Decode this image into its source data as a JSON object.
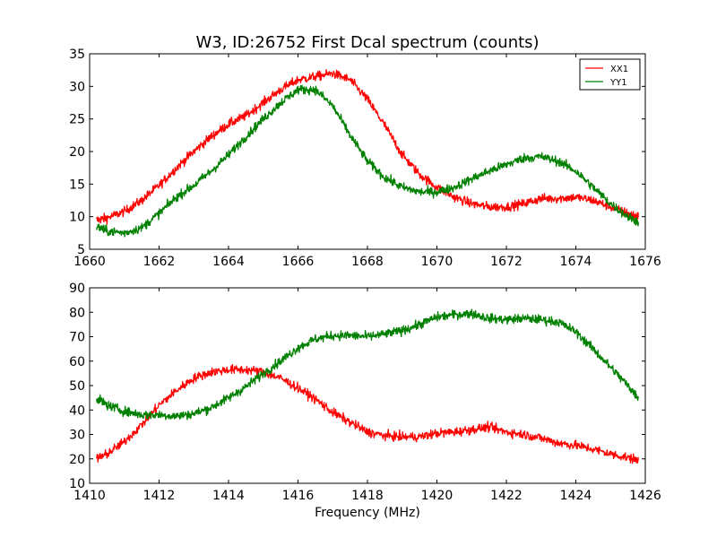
{
  "figure": {
    "title": "W3, ID:26752 First Dcal spectrum (counts)",
    "background": "#ffffff"
  },
  "chart_data": [
    {
      "type": "line",
      "title": "W3, ID:26752 First Dcal spectrum (counts)",
      "xlabel": "",
      "ylabel": "",
      "xlim": [
        1660,
        1676
      ],
      "ylim": [
        5,
        35
      ],
      "xticks": [
        "1660",
        "1662",
        "1664",
        "1666",
        "1668",
        "1670",
        "1672",
        "1674",
        "1676"
      ],
      "yticks": [
        "5",
        "10",
        "15",
        "20",
        "25",
        "30",
        "35"
      ],
      "grid": false,
      "legend": {
        "placement": "top-right",
        "entries": [
          "XX1",
          "YY1"
        ]
      },
      "series": [
        {
          "name": "XX1",
          "color": "#ff0000",
          "x": [
            1660.2,
            1660.5,
            1661.0,
            1661.5,
            1662.0,
            1662.5,
            1663.0,
            1663.5,
            1664.0,
            1664.5,
            1665.0,
            1665.5,
            1666.0,
            1666.5,
            1667.0,
            1667.5,
            1668.0,
            1668.5,
            1669.0,
            1669.5,
            1670.0,
            1670.5,
            1671.0,
            1671.5,
            1672.0,
            1672.5,
            1673.0,
            1673.5,
            1674.0,
            1674.5,
            1675.0,
            1675.5,
            1675.8
          ],
          "y": [
            9.5,
            9.8,
            10.8,
            12.5,
            14.8,
            17.5,
            20.0,
            22.3,
            24.2,
            25.5,
            27.5,
            29.5,
            31.0,
            31.5,
            32.0,
            31.0,
            28.0,
            24.0,
            19.5,
            16.5,
            14.5,
            13.0,
            12.0,
            11.5,
            11.5,
            12.0,
            12.8,
            12.8,
            13.0,
            12.5,
            11.5,
            10.5,
            10.0
          ]
        },
        {
          "name": "YY1",
          "color": "#008000",
          "x": [
            1660.2,
            1660.5,
            1661.0,
            1661.5,
            1662.0,
            1662.5,
            1663.0,
            1663.5,
            1664.0,
            1664.5,
            1665.0,
            1665.5,
            1666.0,
            1666.5,
            1667.0,
            1667.5,
            1668.0,
            1668.5,
            1669.0,
            1669.5,
            1670.0,
            1670.5,
            1671.0,
            1671.5,
            1672.0,
            1672.5,
            1673.0,
            1673.5,
            1674.0,
            1674.5,
            1675.0,
            1675.5,
            1675.8
          ],
          "y": [
            8.5,
            7.8,
            7.5,
            8.3,
            10.5,
            13.0,
            14.8,
            17.0,
            19.5,
            22.3,
            25.0,
            27.5,
            29.5,
            29.5,
            27.0,
            22.5,
            18.5,
            16.0,
            14.5,
            13.8,
            13.8,
            14.5,
            15.8,
            17.0,
            18.0,
            19.0,
            19.2,
            18.5,
            17.0,
            14.5,
            12.0,
            10.0,
            9.2
          ]
        }
      ]
    },
    {
      "type": "line",
      "title": "",
      "xlabel": "Frequency (MHz)",
      "ylabel": "",
      "xlim": [
        1410,
        1426
      ],
      "ylim": [
        10,
        90
      ],
      "xticks": [
        "1410",
        "1412",
        "1414",
        "1416",
        "1418",
        "1420",
        "1422",
        "1424",
        "1426"
      ],
      "yticks": [
        "10",
        "20",
        "30",
        "40",
        "50",
        "60",
        "70",
        "80",
        "90"
      ],
      "grid": false,
      "legend": null,
      "series": [
        {
          "color": "#ff0000",
          "x": [
            1410.2,
            1410.5,
            1411.0,
            1411.5,
            1412.0,
            1412.5,
            1413.0,
            1413.5,
            1414.0,
            1414.5,
            1415.0,
            1415.5,
            1416.0,
            1416.5,
            1417.0,
            1417.5,
            1418.0,
            1418.5,
            1419.0,
            1419.5,
            1420.0,
            1420.5,
            1421.0,
            1421.5,
            1422.0,
            1422.5,
            1423.0,
            1423.5,
            1424.0,
            1424.5,
            1425.0,
            1425.5,
            1425.8
          ],
          "y": [
            20.0,
            22.0,
            27.0,
            34.0,
            42.0,
            48.0,
            53.0,
            55.5,
            56.5,
            56.5,
            55.5,
            53.0,
            49.0,
            44.5,
            39.0,
            35.0,
            31.0,
            29.5,
            29.0,
            29.0,
            30.5,
            31.0,
            32.0,
            33.0,
            31.0,
            30.0,
            28.5,
            26.5,
            25.5,
            24.0,
            22.0,
            20.5,
            19.5
          ]
        },
        {
          "color": "#008000",
          "x": [
            1410.2,
            1410.5,
            1411.0,
            1411.5,
            1412.0,
            1412.5,
            1413.0,
            1413.5,
            1414.0,
            1414.5,
            1415.0,
            1415.5,
            1416.0,
            1416.5,
            1417.0,
            1417.5,
            1418.0,
            1418.5,
            1419.0,
            1419.5,
            1420.0,
            1420.5,
            1421.0,
            1421.5,
            1422.0,
            1422.5,
            1423.0,
            1423.5,
            1424.0,
            1424.5,
            1425.0,
            1425.5,
            1425.8
          ],
          "y": [
            45.0,
            42.0,
            39.5,
            38.0,
            38.0,
            37.5,
            38.5,
            41.0,
            45.0,
            49.5,
            55.0,
            60.0,
            65.5,
            69.0,
            70.5,
            70.5,
            70.0,
            71.0,
            72.5,
            75.0,
            78.0,
            79.0,
            79.5,
            77.5,
            77.0,
            77.5,
            77.0,
            76.0,
            72.0,
            65.0,
            57.5,
            50.0,
            45.0
          ]
        }
      ]
    }
  ]
}
